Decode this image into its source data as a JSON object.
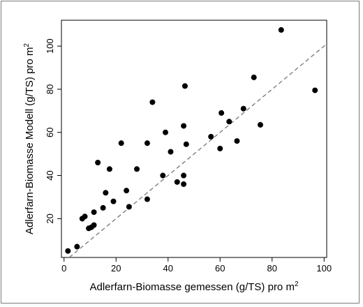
{
  "chart_data": {
    "type": "scatter",
    "title": "",
    "xlabel": "Adlerfarn-Biomasse gemessen (g/TS) pro m",
    "xlabel_superscript": "2",
    "ylabel": "Adlerfarn-Biomasse Modell (g/TS) pro m",
    "ylabel_superscript": "2",
    "xlim": [
      -1,
      101
    ],
    "ylim": [
      2,
      112
    ],
    "x_ticks": [
      0,
      20,
      40,
      60,
      80,
      100
    ],
    "y_ticks": [
      20,
      40,
      60,
      80,
      100
    ],
    "x_tick_labels": [
      "0",
      "20",
      "40",
      "60",
      "80",
      "100"
    ],
    "y_tick_labels": [
      "20",
      "40",
      "60",
      "80",
      "100"
    ],
    "grid": false,
    "point_color": "#000000",
    "reference_line": {
      "style": "dashed",
      "color": "#7f7f7f",
      "from": [
        0,
        0
      ],
      "to": [
        101,
        101
      ]
    },
    "points": [
      {
        "x": 1.5,
        "y": 5
      },
      {
        "x": 5,
        "y": 7
      },
      {
        "x": 7,
        "y": 20
      },
      {
        "x": 8,
        "y": 21
      },
      {
        "x": 9.5,
        "y": 15.5
      },
      {
        "x": 10.5,
        "y": 16
      },
      {
        "x": 11.5,
        "y": 17
      },
      {
        "x": 11.5,
        "y": 23
      },
      {
        "x": 13,
        "y": 46
      },
      {
        "x": 15,
        "y": 25
      },
      {
        "x": 16,
        "y": 32
      },
      {
        "x": 17.5,
        "y": 43
      },
      {
        "x": 19,
        "y": 28
      },
      {
        "x": 22,
        "y": 55
      },
      {
        "x": 24,
        "y": 33
      },
      {
        "x": 25,
        "y": 25.5
      },
      {
        "x": 28,
        "y": 43
      },
      {
        "x": 32,
        "y": 29
      },
      {
        "x": 32,
        "y": 55
      },
      {
        "x": 34,
        "y": 74
      },
      {
        "x": 38,
        "y": 40
      },
      {
        "x": 39,
        "y": 60
      },
      {
        "x": 41,
        "y": 51
      },
      {
        "x": 43.5,
        "y": 37
      },
      {
        "x": 46,
        "y": 36
      },
      {
        "x": 46,
        "y": 40
      },
      {
        "x": 46,
        "y": 63
      },
      {
        "x": 46.5,
        "y": 81.5
      },
      {
        "x": 47,
        "y": 54.5
      },
      {
        "x": 56.5,
        "y": 58
      },
      {
        "x": 60,
        "y": 52.5
      },
      {
        "x": 60.5,
        "y": 69
      },
      {
        "x": 63.5,
        "y": 65
      },
      {
        "x": 66.5,
        "y": 56
      },
      {
        "x": 69,
        "y": 71
      },
      {
        "x": 73,
        "y": 85.5
      },
      {
        "x": 75.5,
        "y": 63.5
      },
      {
        "x": 83.5,
        "y": 107.5
      },
      {
        "x": 96.5,
        "y": 79.5
      }
    ]
  }
}
